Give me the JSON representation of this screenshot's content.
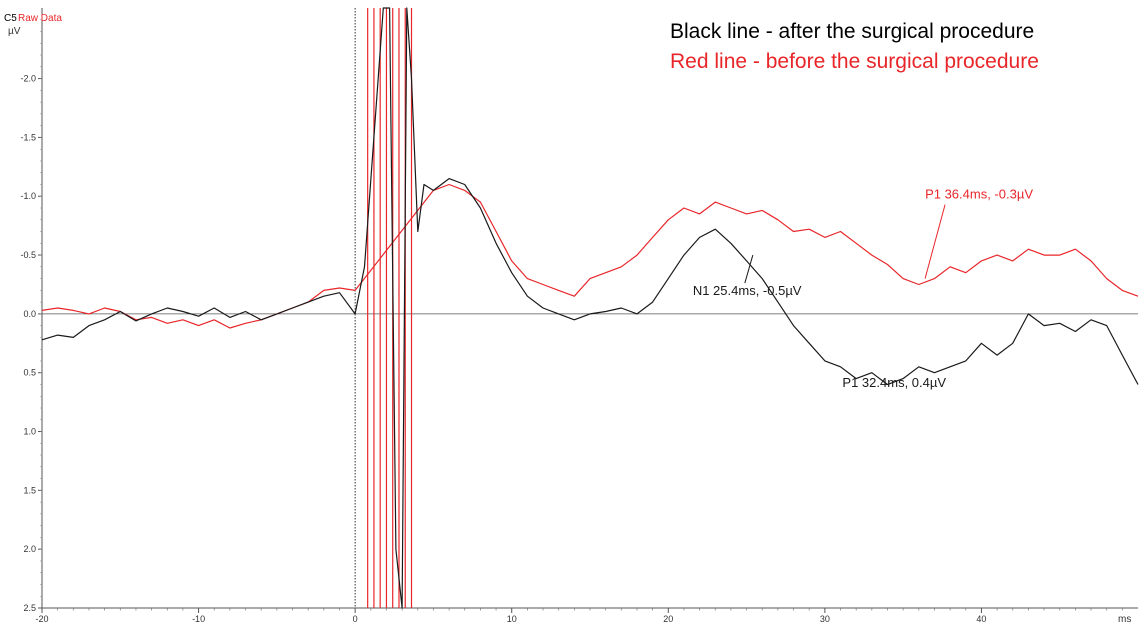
{
  "header": {
    "channel": "C5",
    "channel_color": "#000000",
    "series_label": "Raw Data",
    "series_label_color": "#e8262a",
    "unit_y": "µV",
    "unit_x": "ms"
  },
  "legend": {
    "black_text": "Black line - after the surgical procedure",
    "red_text": "Red line - before the surgical procedure"
  },
  "annotations": {
    "n1_black": "N1 25.4ms, -0.5µV",
    "p1_black": "P1 32.4ms, 0.4µV",
    "p1_red": "P1 36.4ms, -0.3µV"
  },
  "chart_data": {
    "type": "line",
    "xlim": [
      -20,
      50
    ],
    "ylim": [
      -2.6,
      2.5
    ],
    "y_inverted": true,
    "x_ticks": [
      -20,
      -10,
      0,
      10,
      20,
      30,
      40
    ],
    "y_ticks": [
      "-2.0",
      "-1.5",
      "-1.0",
      "-0.5",
      "0.0",
      "0.5",
      "1.0",
      "1.5",
      "2.0",
      "2.5"
    ],
    "baseline": 0,
    "stimulus_marker_x": 0,
    "colors": {
      "black": "#1a1a1a",
      "red": "#e8262a",
      "axis": "#555555"
    },
    "series": [
      {
        "color": "black",
        "x": [
          -20,
          -19,
          -18,
          -17,
          -16,
          -15,
          -14,
          -13,
          -12,
          -11,
          -10,
          -9,
          -8,
          -7,
          -6,
          -5,
          -4,
          -3,
          -2,
          -1,
          0,
          0.6,
          1.2,
          1.8,
          2.2,
          2.6,
          3.0,
          3.3,
          3.6,
          4.0,
          4.4,
          5,
          6,
          7,
          8,
          9,
          10,
          11,
          12,
          13,
          14,
          15,
          16,
          17,
          18,
          19,
          20,
          21,
          22,
          23,
          24,
          25,
          26,
          27,
          28,
          29,
          30,
          31,
          32,
          33,
          34,
          35,
          36,
          37,
          38,
          39,
          40,
          41,
          42,
          43,
          44,
          45,
          46,
          47,
          48,
          49,
          50
        ],
        "y": [
          0.22,
          0.18,
          0.2,
          0.1,
          0.05,
          -0.02,
          0.06,
          0.0,
          -0.05,
          -0.02,
          0.02,
          -0.05,
          0.03,
          -0.02,
          0.05,
          0.0,
          -0.05,
          -0.1,
          -0.15,
          -0.18,
          0.0,
          -0.4,
          -1.5,
          -2.6,
          -2.6,
          2.0,
          2.5,
          -2.6,
          -2.0,
          -0.7,
          -1.1,
          -1.05,
          -1.15,
          -1.1,
          -0.9,
          -0.6,
          -0.35,
          -0.15,
          -0.05,
          0.0,
          0.05,
          0.0,
          -0.02,
          -0.05,
          0.0,
          -0.1,
          -0.3,
          -0.5,
          -0.65,
          -0.72,
          -0.6,
          -0.45,
          -0.3,
          -0.1,
          0.1,
          0.25,
          0.4,
          0.45,
          0.55,
          0.5,
          0.6,
          0.55,
          0.45,
          0.5,
          0.45,
          0.4,
          0.25,
          0.35,
          0.25,
          0.0,
          0.1,
          0.08,
          0.15,
          0.05,
          0.1,
          0.35,
          0.6
        ],
        "value_labels": [
          {
            "key": "n1_black",
            "x": 25.4,
            "y": -0.5
          },
          {
            "key": "p1_black",
            "x": 32.4,
            "y": 0.4
          }
        ]
      },
      {
        "color": "red",
        "x": [
          -20,
          -19,
          -18,
          -17,
          -16,
          -15,
          -14,
          -13,
          -12,
          -11,
          -10,
          -9,
          -8,
          -7,
          -6,
          -5,
          -4,
          -3,
          -2,
          -1,
          0,
          5,
          6,
          7,
          8,
          9,
          10,
          11,
          12,
          13,
          14,
          15,
          16,
          17,
          18,
          19,
          20,
          21,
          22,
          23,
          24,
          25,
          26,
          27,
          28,
          29,
          30,
          31,
          32,
          33,
          34,
          35,
          36,
          37,
          38,
          39,
          40,
          41,
          42,
          43,
          44,
          45,
          46,
          47,
          48,
          49,
          50
        ],
        "y": [
          -0.03,
          -0.05,
          -0.03,
          0.0,
          -0.05,
          -0.02,
          0.05,
          0.03,
          0.08,
          0.05,
          0.1,
          0.05,
          0.12,
          0.08,
          0.05,
          0.0,
          -0.05,
          -0.1,
          -0.2,
          -0.22,
          -0.2,
          -1.05,
          -1.1,
          -1.05,
          -0.95,
          -0.7,
          -0.45,
          -0.3,
          -0.25,
          -0.2,
          -0.15,
          -0.3,
          -0.35,
          -0.4,
          -0.5,
          -0.65,
          -0.8,
          -0.9,
          -0.85,
          -0.95,
          -0.9,
          -0.85,
          -0.88,
          -0.8,
          -0.7,
          -0.72,
          -0.65,
          -0.7,
          -0.6,
          -0.5,
          -0.42,
          -0.3,
          -0.25,
          -0.3,
          -0.4,
          -0.35,
          -0.45,
          -0.5,
          -0.45,
          -0.55,
          -0.5,
          -0.5,
          -0.55,
          -0.45,
          -0.3,
          -0.2,
          -0.15
        ],
        "value_labels": [
          {
            "key": "p1_red",
            "x": 36.4,
            "y": -0.3
          }
        ]
      }
    ],
    "stimulus_artifact_red_x": [
      0.8,
      1.2,
      1.6,
      2.0,
      2.4,
      2.8,
      3.2,
      3.6
    ]
  }
}
